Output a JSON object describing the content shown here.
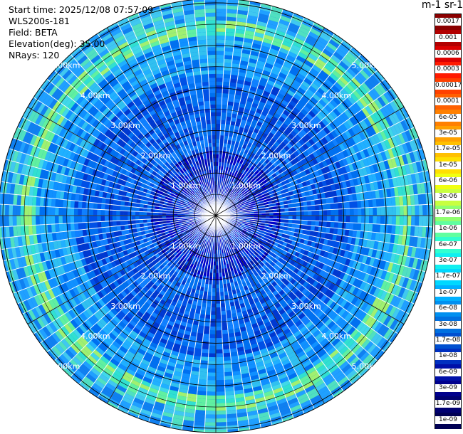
{
  "info": {
    "start_time": "Start time: 2025/12/08 07:57:09",
    "instrument": "WLS200s-181",
    "field": "Field: BETA",
    "elevation": "Elevation(deg): 35.00",
    "nrays": "NRays: 120"
  },
  "colorbar": {
    "title": "m-1 sr-1",
    "labels": [
      "0.0017",
      "0.001",
      "0.0006",
      "0.0003",
      "0.00017",
      "0.0001",
      "6e-05",
      "3e-05",
      "1.7e-05",
      "1e-05",
      "6e-06",
      "3e-06",
      "1.7e-06",
      "1e-06",
      "6e-07",
      "3e-07",
      "1.7e-07",
      "1e-07",
      "6e-08",
      "3e-08",
      "1.7e-08",
      "1e-08",
      "6e-09",
      "3e-09",
      "1.7e-09",
      "1e-09"
    ],
    "colors": [
      "#8b0000",
      "#b20000",
      "#dc0000",
      "#ff1a00",
      "#ff4000",
      "#ff6000",
      "#ff8000",
      "#ffa000",
      "#ffc000",
      "#ffe000",
      "#f0ff10",
      "#c8ff40",
      "#90ff70",
      "#60ffa0",
      "#30ffd0",
      "#10f0f0",
      "#00d8ff",
      "#00b0ff",
      "#0090f0",
      "#0070e0",
      "#0050d0",
      "#0030c0",
      "#0010a8",
      "#00008c",
      "#000070",
      "#000054"
    ]
  },
  "chart_data": {
    "type": "ppi",
    "ring_labels": [
      "1.00km",
      "2.00km",
      "3.00km",
      "4.00km",
      "5.00km"
    ],
    "ring_radii_km": [
      1,
      2,
      3,
      4,
      5
    ],
    "n_rays": 120,
    "max_range_km": 5.1,
    "bands": [
      {
        "range_km": [
          0.0,
          1.5
        ],
        "level": "dark-blue"
      },
      {
        "range_km": [
          1.5,
          3.3
        ],
        "level": "blue"
      },
      {
        "range_km": [
          3.3,
          4.2
        ],
        "level": "blue-light"
      },
      {
        "range_km": [
          4.2,
          4.55
        ],
        "level": "cyan-green"
      },
      {
        "range_km": [
          4.55,
          5.1
        ],
        "level": "light-blue"
      }
    ],
    "band_colors": {
      "dark-blue": [
        "#0000c8",
        "#0030dd",
        "#0050e6",
        "#001aa8"
      ],
      "blue": [
        "#0050e6",
        "#0070f0",
        "#1080ff",
        "#0038d0"
      ],
      "blue-light": [
        "#1090ff",
        "#20b0ff",
        "#0070f0",
        "#30c0f0"
      ],
      "cyan-green": [
        "#30e0d0",
        "#60f0a0",
        "#a0f070",
        "#40d8e8"
      ],
      "light-blue": [
        "#20a0ff",
        "#40c8f0",
        "#1080f0",
        "#50e0c0"
      ]
    }
  }
}
